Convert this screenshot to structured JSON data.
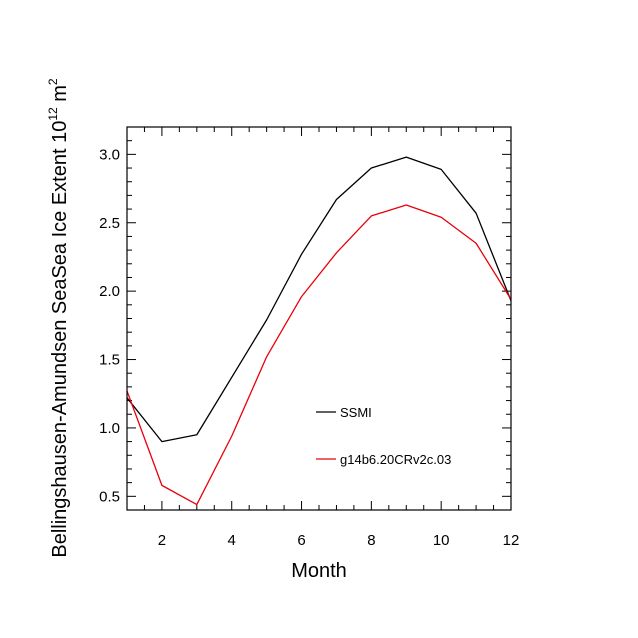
{
  "chart_data": {
    "type": "line",
    "xlabel": "Month",
    "ylabel": "Bellingshausen-Amundsen SeaSea Ice Extent 10",
    "ylabel_sup": "12",
    "ylabel_unit": " m",
    "ylabel_unit_sup": "2",
    "xlim": [
      1,
      12
    ],
    "ylim": [
      0.4,
      3.2
    ],
    "x_ticks": [
      2,
      4,
      6,
      8,
      10,
      12
    ],
    "y_ticks": [
      0.5,
      1.0,
      1.5,
      2.0,
      2.5,
      3.0
    ],
    "x_tick_labels": [
      "2",
      "4",
      "6",
      "8",
      "10",
      "12"
    ],
    "y_tick_labels": [
      "0.5",
      "1.0",
      "1.5",
      "2.0",
      "2.5",
      "3.0"
    ],
    "grid": false,
    "legend_placement": "lower-right inside",
    "x": [
      1,
      2,
      3,
      4,
      5,
      6,
      7,
      8,
      9,
      10,
      11,
      12
    ],
    "series": [
      {
        "name": "SSMI",
        "color": "#000000",
        "values": [
          1.22,
          0.9,
          0.95,
          1.37,
          1.79,
          2.27,
          2.67,
          2.9,
          2.98,
          2.89,
          2.57,
          1.93
        ]
      },
      {
        "name": "g14b6.20CRv2c.03",
        "color": "#e8000b",
        "values": [
          1.27,
          0.58,
          0.44,
          0.94,
          1.52,
          1.96,
          2.28,
          2.55,
          2.63,
          2.54,
          2.35,
          1.94
        ]
      }
    ]
  }
}
